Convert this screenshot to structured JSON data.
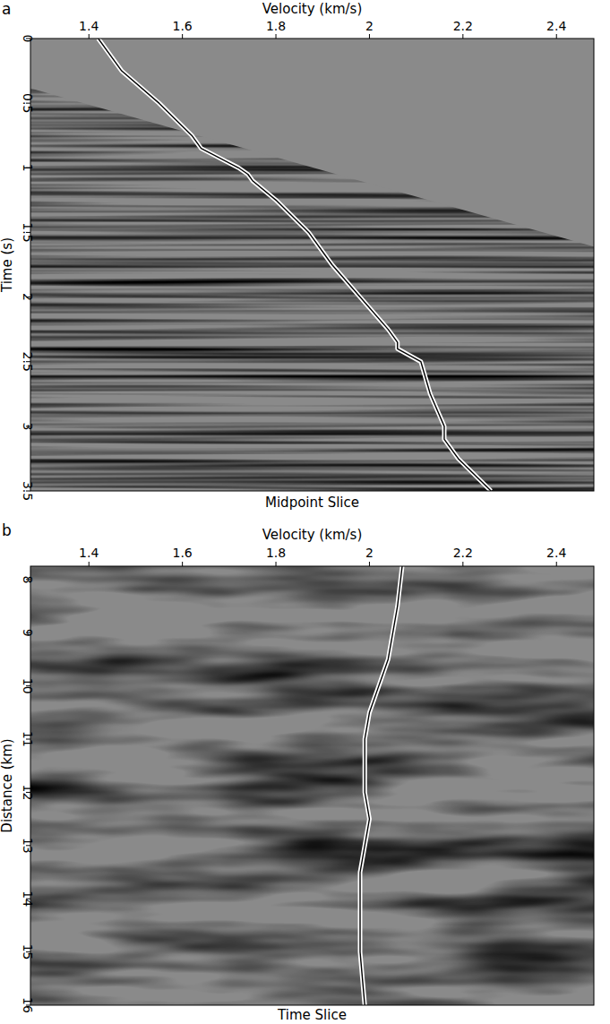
{
  "chart_data": [
    {
      "type": "line",
      "panel_label": "a",
      "x_label": "Velocity (km/s)",
      "y_label": "Time (s)",
      "subtitle": "Midpoint Slice",
      "x": [
        1.42,
        1.47,
        1.55,
        1.62,
        1.64,
        1.72,
        1.74,
        1.75,
        1.8,
        1.87,
        1.92,
        1.98,
        2.04,
        2.06,
        2.06,
        2.11,
        2.13,
        2.16,
        2.16,
        2.19,
        2.26
      ],
      "values": [
        0,
        0.25,
        0.5,
        0.75,
        0.85,
        1.0,
        1.05,
        1.1,
        1.25,
        1.5,
        1.75,
        2.0,
        2.25,
        2.35,
        2.4,
        2.5,
        2.75,
        3.0,
        3.1,
        3.25,
        3.5
      ],
      "color": "#ffffff",
      "xlim": [
        1.275,
        2.48
      ],
      "xticks": [
        1.4,
        1.6,
        1.8,
        2,
        2.2,
        2.4
      ],
      "ylim": [
        3.5,
        0
      ],
      "yticks": [
        0,
        0.5,
        1,
        1.5,
        2,
        2.5,
        3,
        3.5
      ]
    },
    {
      "type": "line",
      "panel_label": "b",
      "x_label": "Velocity (km/s)",
      "y_label": "Distance (km)",
      "subtitle": "Time Slice",
      "x": [
        2.07,
        2.06,
        2.04,
        2.02,
        2.0,
        1.99,
        1.99,
        2.0,
        1.99,
        1.98,
        1.98,
        1.98,
        1.99
      ],
      "values": [
        7.75,
        8.5,
        9.5,
        10,
        10.5,
        11,
        12,
        12.5,
        13,
        13.5,
        14,
        15,
        16
      ],
      "color": "#ffffff",
      "xlim": [
        1.275,
        2.48
      ],
      "xticks": [
        1.4,
        1.6,
        1.8,
        2,
        2.2,
        2.4
      ],
      "ylim": [
        16,
        7.75
      ],
      "yticks": [
        8,
        9,
        10,
        11,
        12,
        13,
        14,
        15,
        16
      ]
    }
  ]
}
